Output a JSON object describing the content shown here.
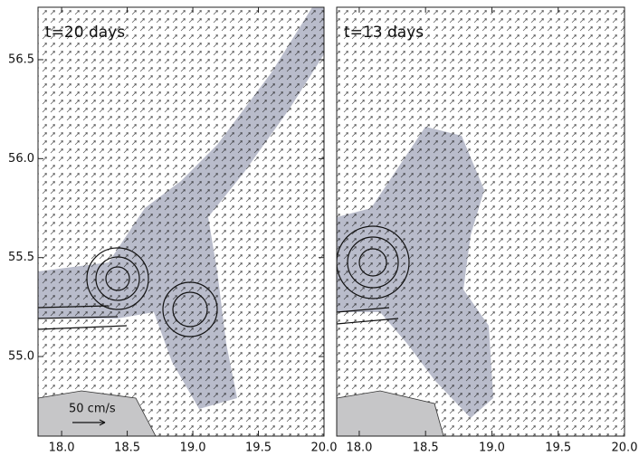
{
  "chart_data": [
    {
      "type": "quiver",
      "title": "t=20 days",
      "scale_label": "50 cm/s",
      "xlim": [
        17.82,
        20.0
      ],
      "ylim": [
        54.598,
        56.765
      ],
      "xticks": [
        {
          "value": 18,
          "label": "18.0"
        },
        18.5,
        {
          "value": 19,
          "label": "19.0"
        },
        19.5,
        {
          "value": 20,
          "label": "20.0"
        }
      ],
      "yticks": [
        {
          "value": 55,
          "label": "55.0"
        },
        55.5,
        {
          "value": 56,
          "label": "56.0"
        },
        56.5
      ]
    },
    {
      "type": "quiver",
      "title": "t=13 days",
      "xlim": [
        17.83,
        20.0
      ],
      "ylim": [
        54.598,
        56.765
      ],
      "xticks": [
        {
          "value": 18,
          "label": "18.0"
        },
        18.5,
        {
          "value": 19,
          "label": "19.0"
        },
        19.5,
        {
          "value": 20,
          "label": "20.0"
        }
      ]
    }
  ]
}
